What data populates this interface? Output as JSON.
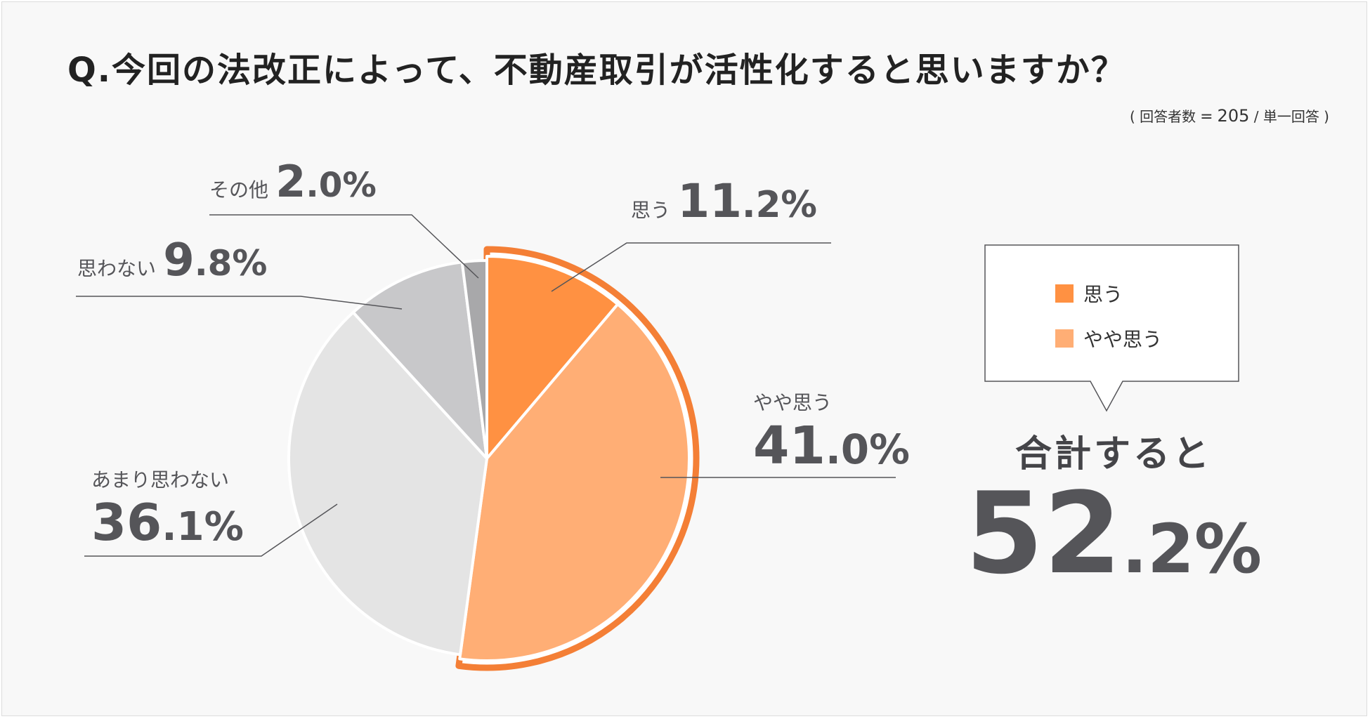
{
  "title": "Q.今回の法改正によって、不動産取引が活性化すると思いますか？",
  "respondents": {
    "label": "回答者数",
    "equals": "=",
    "count": "205",
    "type": "/ 単一回答"
  },
  "colors": {
    "omou": "#FF9142",
    "yaya_omou": "#FFAE75",
    "amari": "#E4E4E4",
    "omowanai": "#C8C8CA",
    "sonota": "#A8A8AA",
    "highlight_stroke": "#F47F36",
    "text": "#555559"
  },
  "legend": [
    {
      "label": "思う",
      "color": "#FF9142"
    },
    {
      "label": "やや思う",
      "color": "#FFAE75"
    }
  ],
  "summary": {
    "label": "合計すると",
    "value_int": "52",
    "value_dec": ".2%"
  },
  "chart_data": {
    "type": "pie",
    "title": "Q.今回の法改正によって、不動産取引が活性化すると思いますか？",
    "slices": [
      {
        "label": "思う",
        "value": 11.2,
        "display_int": "11",
        "display_dec": ".2%"
      },
      {
        "label": "やや思う",
        "value": 41.0,
        "display_int": "41",
        "display_dec": ".0%"
      },
      {
        "label": "あまり思わない",
        "value": 36.1,
        "display_int": "36",
        "display_dec": ".1%"
      },
      {
        "label": "思わない",
        "value": 9.8,
        "display_int": "9",
        "display_dec": ".8%"
      },
      {
        "label": "その他",
        "value": 2.0,
        "display_int": "2",
        "display_dec": ".0%"
      }
    ],
    "highlighted": [
      "思う",
      "やや思う"
    ],
    "start_angle": "12 o'clock",
    "direction": "clockwise"
  }
}
